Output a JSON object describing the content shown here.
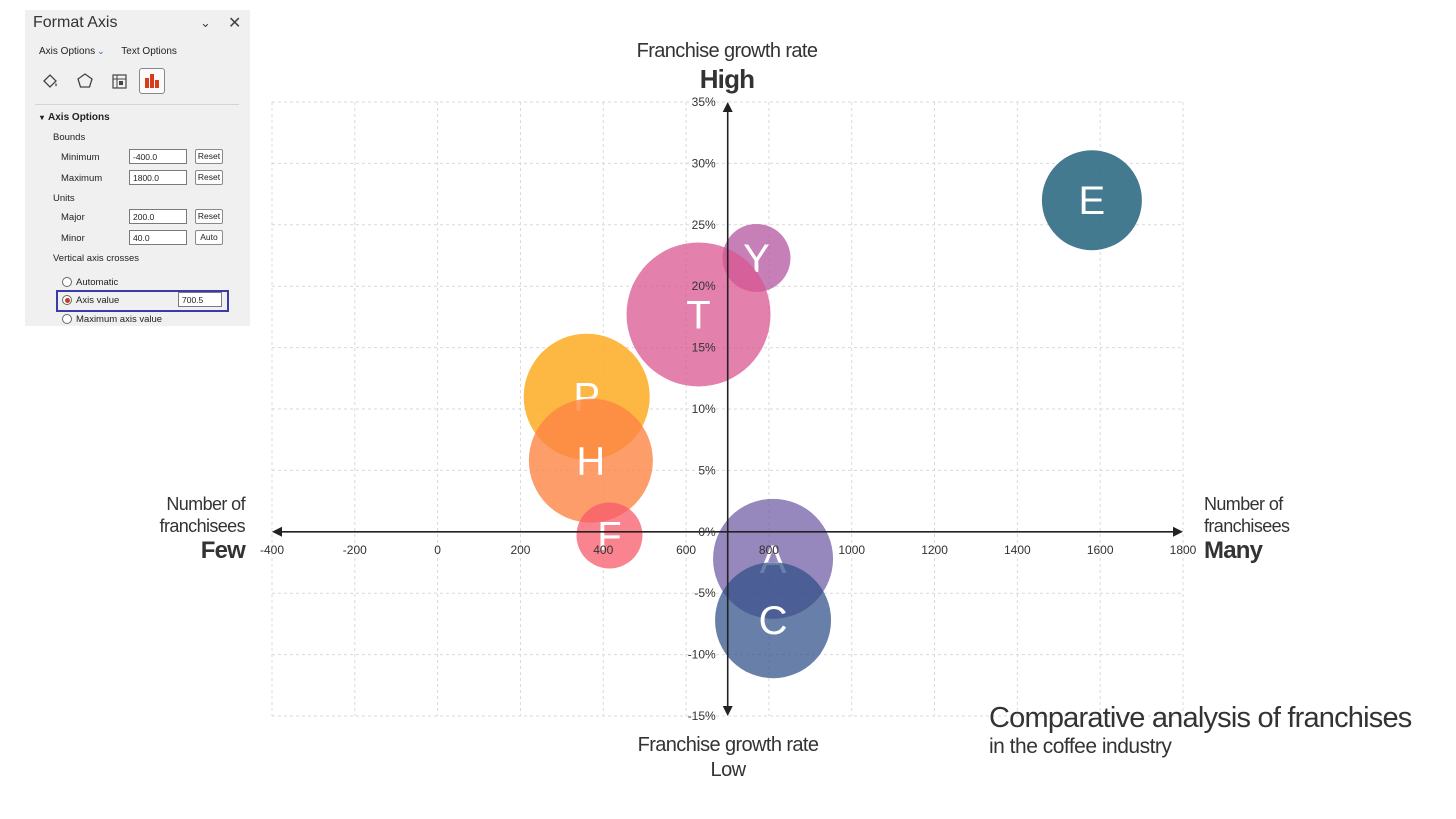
{
  "panel": {
    "title": "Format Axis",
    "tabs": [
      "Axis Options",
      "Text Options"
    ],
    "section": "Axis Options",
    "bounds_label": "Bounds",
    "minimum_label": "Minimum",
    "minimum_value": "-400.0",
    "maximum_label": "Maximum",
    "maximum_value": "1800.0",
    "units_label": "Units",
    "major_label": "Major",
    "major_value": "200.0",
    "minor_label": "Minor",
    "minor_value": "40.0",
    "reset": "Reset",
    "auto": "Auto",
    "crosses_label": "Vertical axis crosses",
    "opt_automatic": "Automatic",
    "opt_axis_value": "Axis value",
    "axis_value": "700.5",
    "opt_max": "Maximum axis value",
    "icons": [
      "fill-line-icon",
      "effects-icon",
      "size-properties-icon",
      "axis-options-icon"
    ]
  },
  "chart_data": {
    "type": "bubble",
    "title": "Comparative analysis of franchises",
    "subtitle": "in the coffee industry",
    "x_axis": {
      "min": -400,
      "max": 1800,
      "major": 200,
      "ticks": [
        "-400",
        "-200",
        "0",
        "200",
        "400",
        "600",
        "800",
        "1000",
        "1200",
        "1400",
        "1600",
        "1800"
      ],
      "label_left": "Number of franchisees",
      "label_left_strong": "Few",
      "label_right": "Number of franchisees",
      "label_right_strong": "Many",
      "crosses_at": 700.5
    },
    "y_axis": {
      "min": -15,
      "max": 35,
      "major": 5,
      "ticks": [
        "35%",
        "30%",
        "25%",
        "20%",
        "15%",
        "10%",
        "5%",
        "0%",
        "-5%",
        "-10%",
        "-15%"
      ],
      "label_top": "Franchise growth rate",
      "label_top_strong": "High",
      "label_bottom": "Franchise growth rate",
      "label_bottom_strong": "Low"
    },
    "grid": true,
    "series": [
      {
        "name": "E",
        "x": 1580,
        "y": 27,
        "size": 50,
        "color": "#2f6b84",
        "opacity": 0.9
      },
      {
        "name": "Y",
        "x": 770,
        "y": 22.3,
        "size": 34,
        "color": "#b4559f",
        "opacity": 0.75
      },
      {
        "name": "T",
        "x": 630,
        "y": 17.7,
        "size": 72,
        "color": "#da5590",
        "opacity": 0.75
      },
      {
        "name": "P",
        "x": 360,
        "y": 11,
        "size": 63,
        "color": "#fcab21",
        "opacity": 0.85
      },
      {
        "name": "H",
        "x": 370,
        "y": 5.8,
        "size": 62,
        "color": "#fc8445",
        "opacity": 0.8
      },
      {
        "name": "F",
        "x": 415,
        "y": -0.3,
        "size": 33,
        "color": "#f75b6b",
        "opacity": 0.75
      },
      {
        "name": "A",
        "x": 810,
        "y": -2.2,
        "size": 60,
        "color": "#6a55a0",
        "opacity": 0.7
      },
      {
        "name": "C",
        "x": 810,
        "y": -7.2,
        "size": 58,
        "color": "#2e4f88",
        "opacity": 0.72
      }
    ]
  }
}
